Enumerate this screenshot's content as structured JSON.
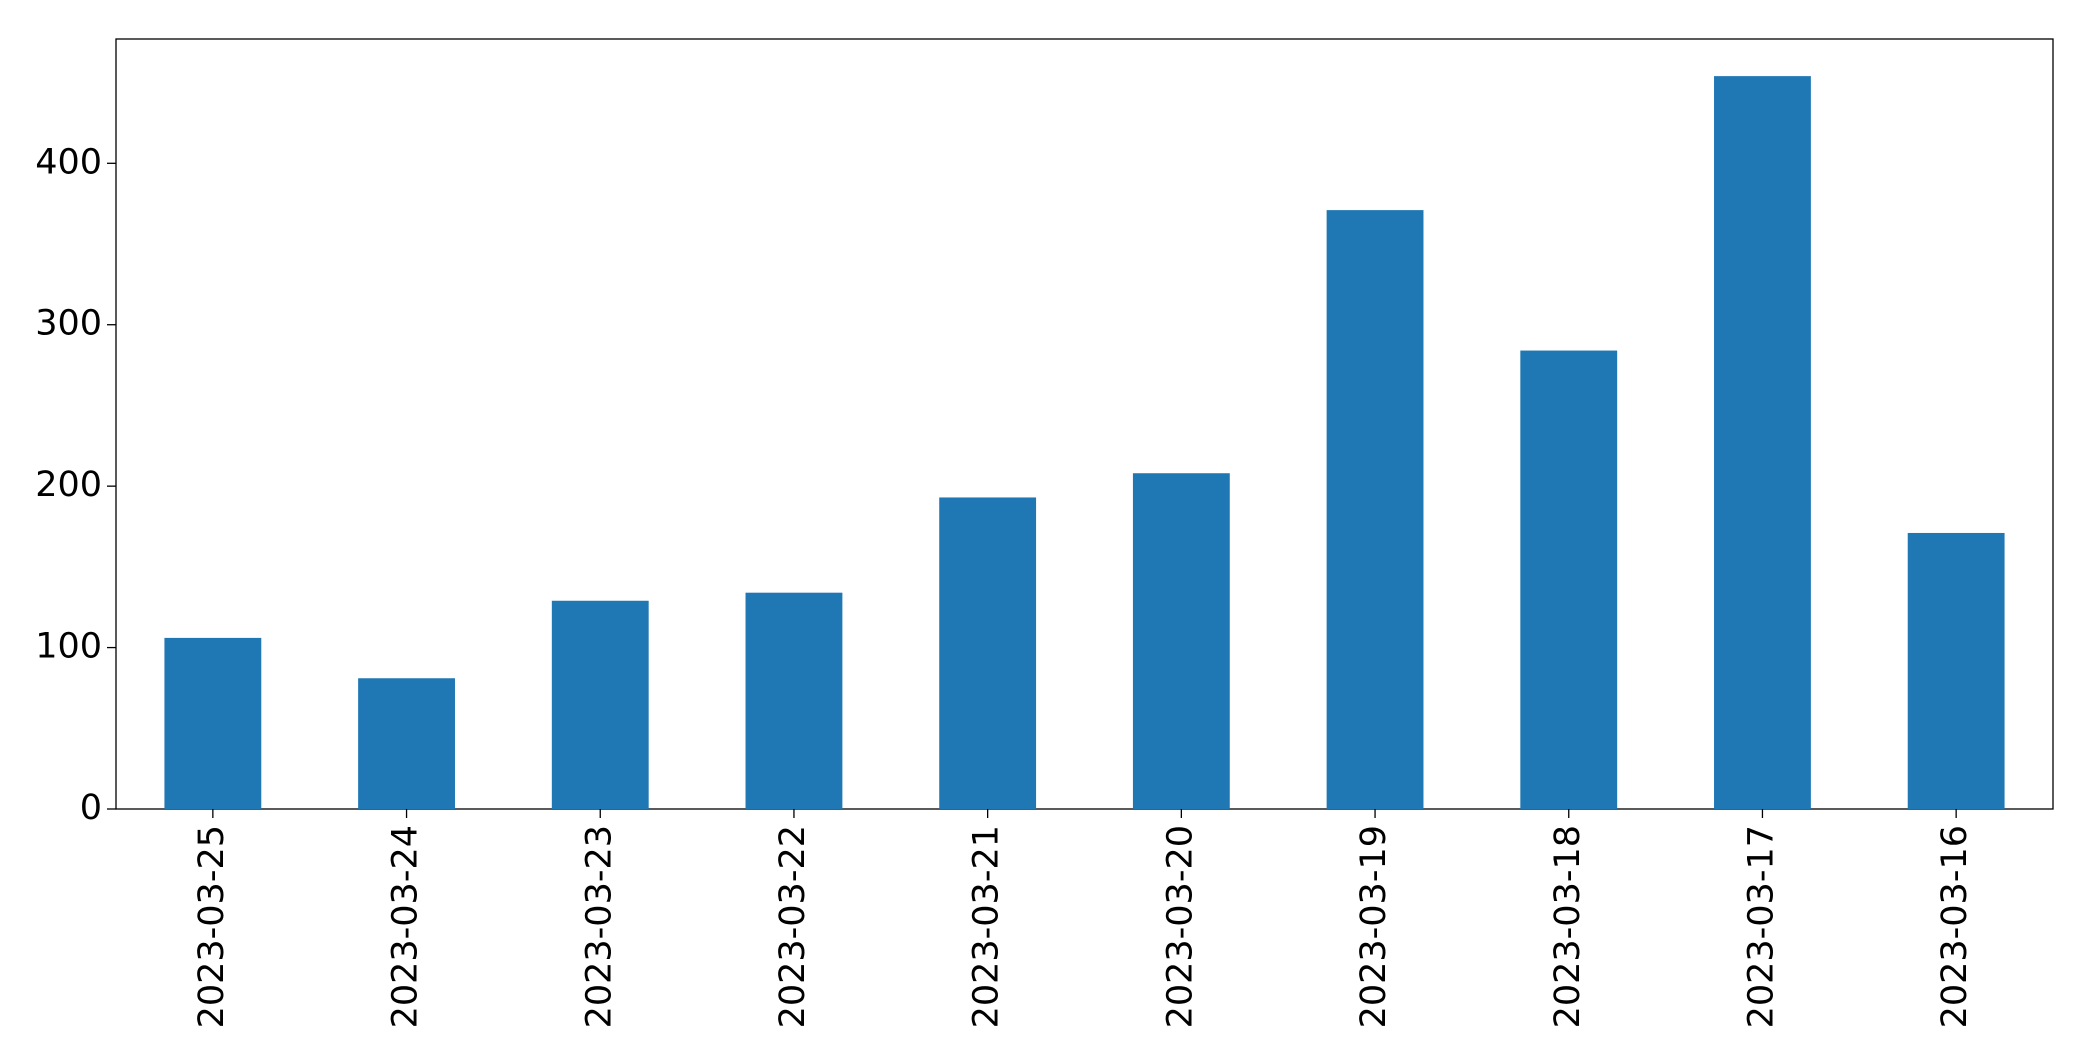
{
  "chart_data": {
    "type": "bar",
    "categories": [
      "2023-03-25",
      "2023-03-24",
      "2023-03-23",
      "2023-03-22",
      "2023-03-21",
      "2023-03-20",
      "2023-03-19",
      "2023-03-18",
      "2023-03-17",
      "2023-03-16"
    ],
    "values": [
      106,
      81,
      129,
      134,
      193,
      208,
      371,
      284,
      454,
      171
    ],
    "color": "#1f77b4",
    "ylim": [
      0,
      477
    ],
    "yticks": [
      0,
      100,
      200,
      300,
      400
    ],
    "grid": false
  }
}
